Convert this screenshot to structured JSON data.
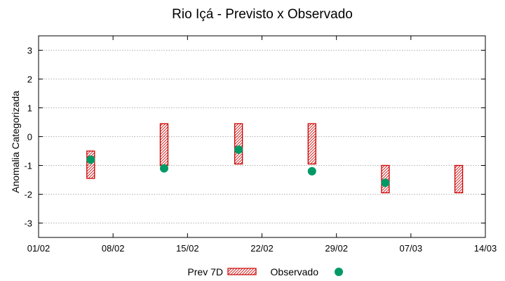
{
  "chart_data": {
    "type": "range-bar-scatter",
    "title": "Rio Içá - Previsto x Observado",
    "xlabel": "",
    "ylabel": "Anomalia Categorizada",
    "ylim": [
      -3.5,
      3.5
    ],
    "yticks": [
      3,
      2,
      1,
      0,
      -1,
      -2,
      -3
    ],
    "ytick_labels": [
      "3",
      "2",
      "1",
      "0",
      "-1",
      "-2",
      "-3"
    ],
    "xlim_days": [
      0,
      41
    ],
    "xticks": [
      {
        "day": 0,
        "label": "01/02"
      },
      {
        "day": 7,
        "label": "08/02"
      },
      {
        "day": 14,
        "label": "15/02"
      },
      {
        "day": 21,
        "label": "22/02"
      },
      {
        "day": 28,
        "label": "29/02"
      },
      {
        "day": 35,
        "label": "07/03"
      },
      {
        "day": 42,
        "label": "14/03"
      }
    ],
    "grid": true,
    "legend_position": "bottom",
    "series": [
      {
        "name": "Prev 7D",
        "kind": "range",
        "color": "#cc0000",
        "points": [
          {
            "day": 4.9,
            "low": -1.45,
            "high": -0.5
          },
          {
            "day": 11.8,
            "low": -1.0,
            "high": 0.45
          },
          {
            "day": 18.8,
            "low": -0.95,
            "high": 0.45
          },
          {
            "day": 25.7,
            "low": -0.95,
            "high": 0.45
          },
          {
            "day": 32.6,
            "low": -1.95,
            "high": -1.0
          },
          {
            "day": 39.5,
            "low": -1.95,
            "high": -1.0
          }
        ]
      },
      {
        "name": "Observado",
        "kind": "point",
        "color": "#009966",
        "points": [
          {
            "day": 4.9,
            "value": -0.8
          },
          {
            "day": 11.8,
            "value": -1.1
          },
          {
            "day": 18.8,
            "value": -0.45
          },
          {
            "day": 25.7,
            "value": -1.2
          },
          {
            "day": 32.6,
            "value": -1.6
          }
        ]
      }
    ]
  }
}
